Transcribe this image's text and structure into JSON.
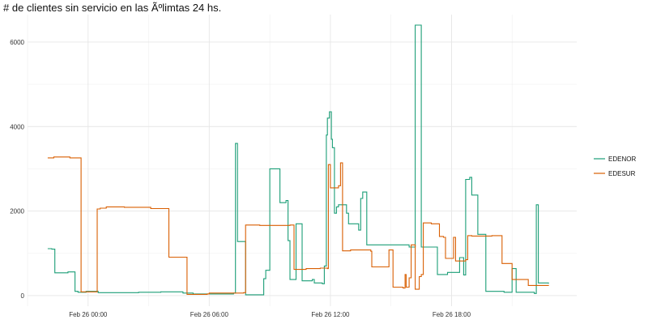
{
  "chart_data": {
    "type": "line",
    "title": "# de clientes sin servicio en las Ãºlimtas 24 hs.",
    "xlabel": "",
    "ylabel": "",
    "x_unit": "hours",
    "x_ticks": [
      {
        "value": 0,
        "label": "Feb 26 00:00"
      },
      {
        "value": 6,
        "label": "Feb 26 06:00"
      },
      {
        "value": 12,
        "label": "Feb 26 12:00"
      },
      {
        "value": 18,
        "label": "Feb 26 18:00"
      }
    ],
    "y_ticks": [
      0,
      2000,
      4000,
      6000
    ],
    "xlim": [
      -3.0,
      24.2
    ],
    "ylim": [
      -250,
      6650
    ],
    "grid": true,
    "legend_position": "right",
    "series": [
      {
        "name": "EDENOR",
        "color": "#1b9e77",
        "points": [
          [
            -2.0,
            1110
          ],
          [
            -1.8,
            1100
          ],
          [
            -1.65,
            540
          ],
          [
            -1.2,
            540
          ],
          [
            -1.0,
            560
          ],
          [
            -0.7,
            560
          ],
          [
            -0.65,
            100
          ],
          [
            -0.5,
            80
          ],
          [
            -0.3,
            80
          ],
          [
            -0.1,
            100
          ],
          [
            0.2,
            100
          ],
          [
            0.5,
            70
          ],
          [
            1.5,
            70
          ],
          [
            2.5,
            80
          ],
          [
            3.5,
            80
          ],
          [
            3.6,
            90
          ],
          [
            4.5,
            90
          ],
          [
            4.7,
            60
          ],
          [
            5.2,
            40
          ],
          [
            6.5,
            40
          ],
          [
            7.2,
            60
          ],
          [
            7.3,
            3600
          ],
          [
            7.4,
            1280
          ],
          [
            7.7,
            1280
          ],
          [
            7.8,
            20
          ],
          [
            8.6,
            20
          ],
          [
            8.7,
            400
          ],
          [
            8.8,
            600
          ],
          [
            9.0,
            3000
          ],
          [
            9.4,
            3000
          ],
          [
            9.5,
            2200
          ],
          [
            9.8,
            2250
          ],
          [
            9.9,
            1300
          ],
          [
            10.0,
            380
          ],
          [
            10.2,
            380
          ],
          [
            10.3,
            1700
          ],
          [
            10.5,
            1700
          ],
          [
            10.6,
            350
          ],
          [
            11.1,
            380
          ],
          [
            11.2,
            300
          ],
          [
            11.6,
            280
          ],
          [
            11.7,
            700
          ],
          [
            11.8,
            3800
          ],
          [
            11.85,
            4200
          ],
          [
            11.95,
            4350
          ],
          [
            12.05,
            3700
          ],
          [
            12.1,
            3500
          ],
          [
            12.2,
            1950
          ],
          [
            12.3,
            2100
          ],
          [
            12.4,
            2150
          ],
          [
            12.8,
            1950
          ],
          [
            12.9,
            1700
          ],
          [
            13.3,
            1700
          ],
          [
            13.4,
            1550
          ],
          [
            13.5,
            2300
          ],
          [
            13.6,
            2450
          ],
          [
            13.8,
            1200
          ],
          [
            14.6,
            1200
          ],
          [
            15.5,
            1200
          ],
          [
            15.9,
            1150
          ],
          [
            16.1,
            1150
          ],
          [
            16.2,
            6400
          ],
          [
            16.4,
            6400
          ],
          [
            16.5,
            1150
          ],
          [
            17.2,
            1150
          ],
          [
            17.3,
            500
          ],
          [
            17.7,
            500
          ],
          [
            17.8,
            550
          ],
          [
            18.3,
            550
          ],
          [
            18.4,
            900
          ],
          [
            18.6,
            490
          ],
          [
            18.7,
            2750
          ],
          [
            18.9,
            2800
          ],
          [
            19.0,
            2380
          ],
          [
            19.2,
            2380
          ],
          [
            19.3,
            1450
          ],
          [
            19.6,
            1450
          ],
          [
            19.7,
            100
          ],
          [
            20.6,
            80
          ],
          [
            21.0,
            640
          ],
          [
            21.2,
            80
          ],
          [
            22.1,
            50
          ],
          [
            22.2,
            2150
          ],
          [
            22.3,
            300
          ],
          [
            22.8,
            280
          ]
        ]
      },
      {
        "name": "EDESUR",
        "color": "#d95f02",
        "points": [
          [
            -2.0,
            3260
          ],
          [
            -1.7,
            3280
          ],
          [
            -1.0,
            3280
          ],
          [
            -0.9,
            3260
          ],
          [
            -0.4,
            3260
          ],
          [
            -0.35,
            90
          ],
          [
            0.4,
            90
          ],
          [
            0.45,
            2050
          ],
          [
            0.6,
            2070
          ],
          [
            0.9,
            2100
          ],
          [
            1.8,
            2090
          ],
          [
            3.0,
            2090
          ],
          [
            3.1,
            2060
          ],
          [
            3.9,
            2060
          ],
          [
            4.0,
            910
          ],
          [
            4.8,
            910
          ],
          [
            4.9,
            30
          ],
          [
            5.9,
            40
          ],
          [
            6.0,
            60
          ],
          [
            7.0,
            60
          ],
          [
            7.7,
            70
          ],
          [
            7.8,
            1670
          ],
          [
            8.5,
            1660
          ],
          [
            9.2,
            1660
          ],
          [
            10.0,
            1670
          ],
          [
            10.2,
            620
          ],
          [
            10.5,
            620
          ],
          [
            10.8,
            640
          ],
          [
            11.0,
            640
          ],
          [
            11.5,
            650
          ],
          [
            11.85,
            640
          ],
          [
            11.9,
            3100
          ],
          [
            12.0,
            2550
          ],
          [
            12.4,
            2600
          ],
          [
            12.5,
            3140
          ],
          [
            12.6,
            1060
          ],
          [
            13.0,
            1080
          ],
          [
            13.3,
            1080
          ],
          [
            14.0,
            1050
          ],
          [
            14.05,
            680
          ],
          [
            14.8,
            680
          ],
          [
            14.9,
            1080
          ],
          [
            15.0,
            1080
          ],
          [
            15.1,
            200
          ],
          [
            15.6,
            180
          ],
          [
            15.7,
            500
          ],
          [
            15.75,
            200
          ],
          [
            15.9,
            420
          ],
          [
            16.0,
            1200
          ],
          [
            16.1,
            1200
          ],
          [
            16.2,
            150
          ],
          [
            16.4,
            450
          ],
          [
            16.5,
            500
          ],
          [
            16.6,
            1720
          ],
          [
            16.8,
            1720
          ],
          [
            17.0,
            1700
          ],
          [
            17.4,
            1400
          ],
          [
            17.6,
            1380
          ],
          [
            17.7,
            880
          ],
          [
            18.0,
            880
          ],
          [
            18.1,
            1380
          ],
          [
            18.2,
            820
          ],
          [
            18.7,
            850
          ],
          [
            18.8,
            1420
          ],
          [
            19.0,
            1410
          ],
          [
            20.0,
            1420
          ],
          [
            20.4,
            1420
          ],
          [
            20.5,
            760
          ],
          [
            20.9,
            760
          ],
          [
            21.0,
            380
          ],
          [
            21.7,
            380
          ],
          [
            21.8,
            240
          ],
          [
            22.8,
            250
          ]
        ]
      }
    ]
  }
}
